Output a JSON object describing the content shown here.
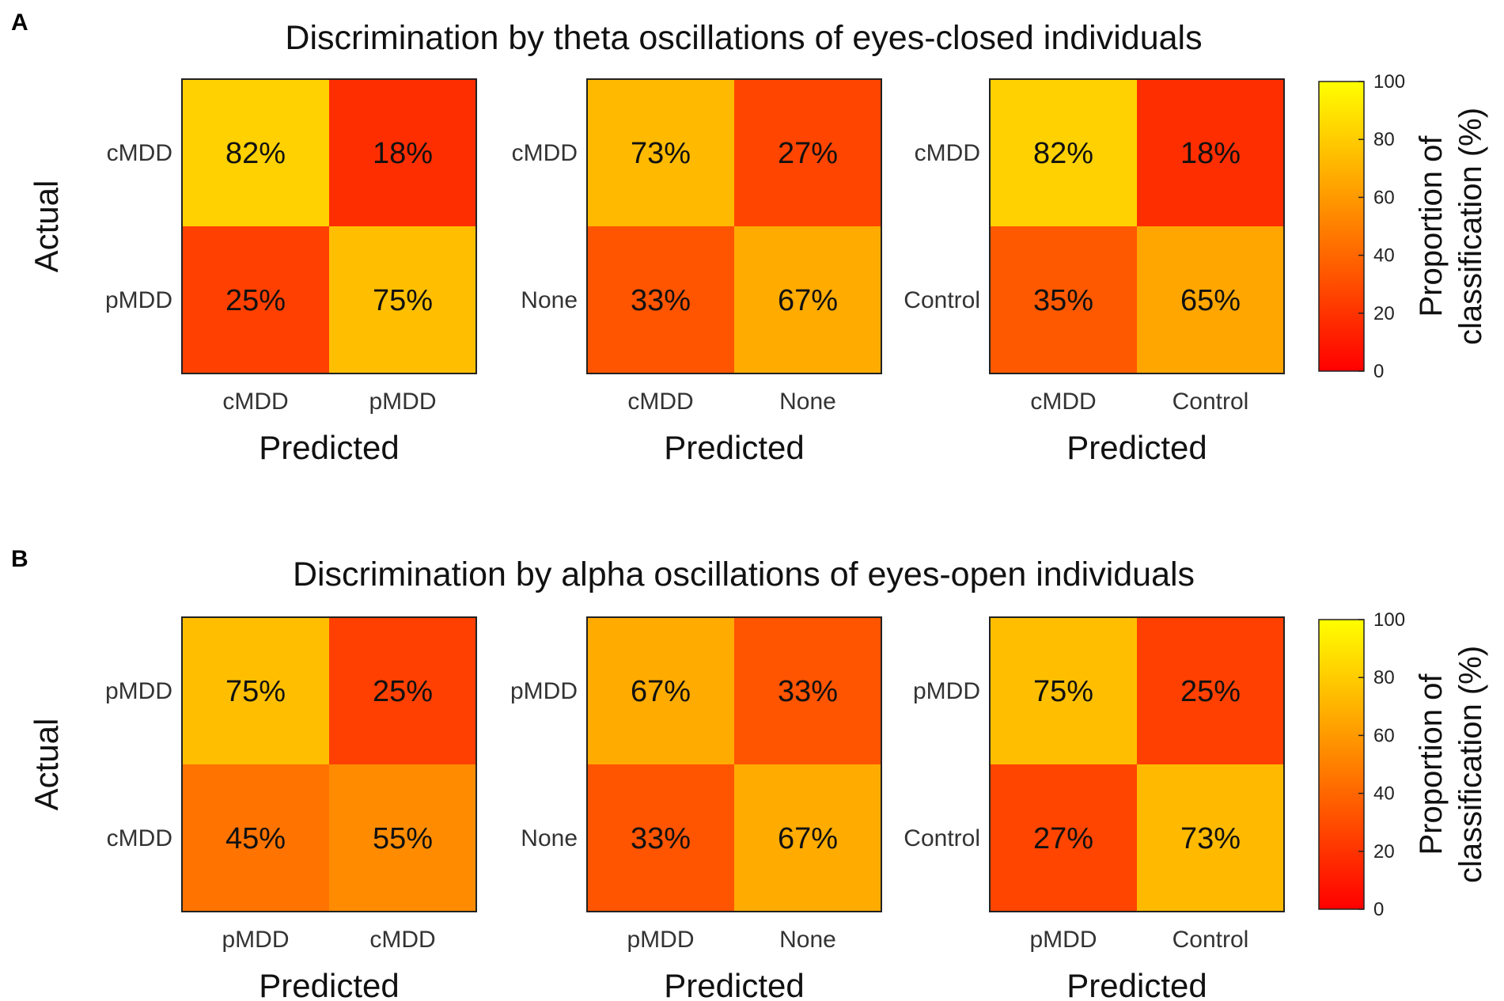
{
  "chart_data": {
    "type": "heatmap",
    "colormap": "autumn",
    "colorbar": {
      "label_line1": "Proportion of",
      "label_line2": "classification (%)",
      "ticks": [
        "0",
        "20",
        "40",
        "60",
        "80",
        "100"
      ],
      "range": [
        0,
        100
      ]
    },
    "panels": [
      {
        "letter": "A",
        "title": "Discrimination by theta oscillations of eyes-closed individuals",
        "ylabel": "Actual",
        "matrices": [
          {
            "rows": [
              "cMDD",
              "pMDD"
            ],
            "cols": [
              "cMDD",
              "pMDD"
            ],
            "xlabel": "Predicted",
            "values": [
              [
                82,
                18
              ],
              [
                25,
                75
              ]
            ],
            "labels": [
              [
                "82%",
                "18%"
              ],
              [
                "25%",
                "75%"
              ]
            ]
          },
          {
            "rows": [
              "cMDD",
              "None"
            ],
            "cols": [
              "cMDD",
              "None"
            ],
            "xlabel": "Predicted",
            "values": [
              [
                73,
                27
              ],
              [
                33,
                67
              ]
            ],
            "labels": [
              [
                "73%",
                "27%"
              ],
              [
                "33%",
                "67%"
              ]
            ]
          },
          {
            "rows": [
              "cMDD",
              "Control"
            ],
            "cols": [
              "cMDD",
              "Control"
            ],
            "xlabel": "Predicted",
            "values": [
              [
                82,
                18
              ],
              [
                35,
                65
              ]
            ],
            "labels": [
              [
                "82%",
                "18%"
              ],
              [
                "35%",
                "65%"
              ]
            ]
          }
        ]
      },
      {
        "letter": "B",
        "title": "Discrimination by alpha oscillations of eyes-open individuals",
        "ylabel": "Actual",
        "matrices": [
          {
            "rows": [
              "pMDD",
              "cMDD"
            ],
            "cols": [
              "pMDD",
              "cMDD"
            ],
            "xlabel": "Predicted",
            "values": [
              [
                75,
                25
              ],
              [
                45,
                55
              ]
            ],
            "labels": [
              [
                "75%",
                "25%"
              ],
              [
                "45%",
                "55%"
              ]
            ]
          },
          {
            "rows": [
              "pMDD",
              "None"
            ],
            "cols": [
              "pMDD",
              "None"
            ],
            "xlabel": "Predicted",
            "values": [
              [
                67,
                33
              ],
              [
                33,
                67
              ]
            ],
            "labels": [
              [
                "67%",
                "33%"
              ],
              [
                "33%",
                "67%"
              ]
            ]
          },
          {
            "rows": [
              "pMDD",
              "Control"
            ],
            "cols": [
              "pMDD",
              "Control"
            ],
            "xlabel": "Predicted",
            "values": [
              [
                75,
                25
              ],
              [
                27,
                73
              ]
            ],
            "labels": [
              [
                "75%",
                "25%"
              ],
              [
                "27%",
                "73%"
              ]
            ]
          }
        ]
      }
    ]
  }
}
